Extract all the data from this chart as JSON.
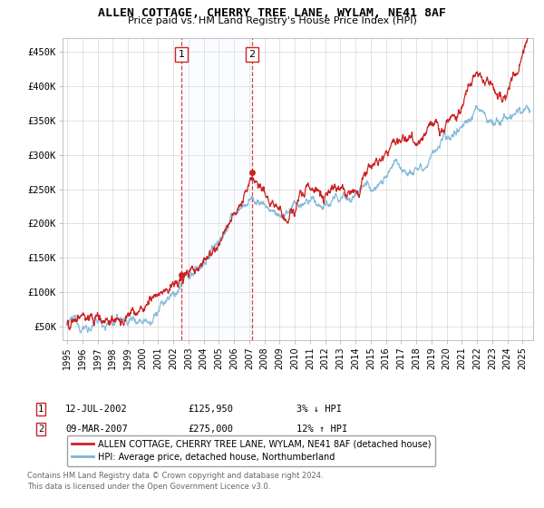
{
  "title_line1": "ALLEN COTTAGE, CHERRY TREE LANE, WYLAM, NE41 8AF",
  "title_line2": "Price paid vs. HM Land Registry's House Price Index (HPI)",
  "ylabel_ticks": [
    "£50K",
    "£100K",
    "£150K",
    "£200K",
    "£250K",
    "£300K",
    "£350K",
    "£400K",
    "£450K"
  ],
  "ylabel_values": [
    50000,
    100000,
    150000,
    200000,
    250000,
    300000,
    350000,
    400000,
    450000
  ],
  "ylim": [
    30000,
    470000
  ],
  "xlim_start": 1994.7,
  "xlim_end": 2025.7,
  "sale1": {
    "date": 2002.53,
    "price": 125950,
    "label": "1",
    "pct": "3%",
    "dir": "↓",
    "date_str": "12-JUL-2002",
    "price_str": "£125,950"
  },
  "sale2": {
    "date": 2007.18,
    "price": 275000,
    "label": "2",
    "pct": "12%",
    "dir": "↑",
    "date_str": "09-MAR-2007",
    "price_str": "£275,000"
  },
  "legend_line1": "ALLEN COTTAGE, CHERRY TREE LANE, WYLAM, NE41 8AF (detached house)",
  "legend_line2": "HPI: Average price, detached house, Northumberland",
  "footer_line1": "Contains HM Land Registry data © Crown copyright and database right 2024.",
  "footer_line2": "This data is licensed under the Open Government Licence v3.0.",
  "hpi_color": "#7ab5d8",
  "price_color": "#cc2222",
  "shade_color": "#ddeeff",
  "dashed_color": "#cc2222",
  "box_edge_color": "#cc2222",
  "background_color": "#ffffff",
  "grid_color": "#cccccc",
  "hpi_breakpoints": [
    1995,
    1997,
    1999,
    2000,
    2001,
    2002,
    2003,
    2004,
    2005,
    2006,
    2007,
    2008,
    2009,
    2010,
    2011,
    2012,
    2013,
    2014,
    2015,
    2016,
    2017,
    2018,
    2019,
    2020,
    2021,
    2022,
    2023,
    2024,
    2025.5
  ],
  "hpi_values": [
    52000,
    55000,
    60000,
    68000,
    80000,
    95000,
    115000,
    145000,
    175000,
    210000,
    235000,
    230000,
    210000,
    220000,
    225000,
    225000,
    235000,
    248000,
    260000,
    275000,
    285000,
    295000,
    305000,
    310000,
    340000,
    370000,
    345000,
    355000,
    355000
  ],
  "prop_breakpoints": [
    1995,
    1997,
    1999,
    2000,
    2001,
    2002,
    2003,
    2004,
    2005,
    2006,
    2007,
    2008,
    2009,
    2010,
    2011,
    2012,
    2013,
    2014,
    2015,
    2016,
    2017,
    2018,
    2019,
    2020,
    2021,
    2022,
    2023,
    2024,
    2025.5
  ],
  "prop_values": [
    53000,
    57000,
    62000,
    72000,
    85000,
    100000,
    125000,
    155000,
    185000,
    220000,
    255000,
    240000,
    215000,
    230000,
    240000,
    238000,
    250000,
    265000,
    278000,
    295000,
    308000,
    320000,
    335000,
    340000,
    375000,
    410000,
    380000,
    395000,
    460000
  ]
}
